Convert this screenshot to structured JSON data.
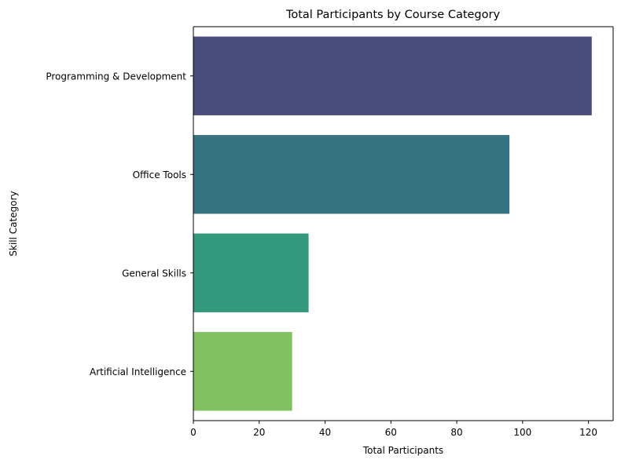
{
  "chart_data": {
    "type": "bar",
    "orientation": "horizontal",
    "title": "Total Participants by Course Category",
    "xlabel": "Total Participants",
    "ylabel": "Skill Category",
    "categories": [
      "Programming & Development",
      "Office Tools",
      "General Skills",
      "Artificial Intelligence"
    ],
    "values": [
      121,
      96,
      35,
      30
    ],
    "colors": [
      "#4a4c7e",
      "#377481",
      "#349a7e",
      "#80c260"
    ],
    "xlim": [
      0,
      127.5
    ],
    "xticks": [
      0,
      20,
      40,
      60,
      80,
      100,
      120
    ],
    "grid": false
  }
}
